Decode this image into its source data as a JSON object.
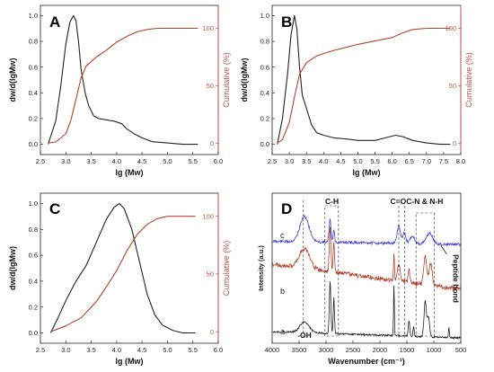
{
  "figure": {
    "colors": {
      "black": "#222222",
      "red": "#b5432b",
      "blue": "#4343d6",
      "axis_red": "#c0504d"
    }
  },
  "chart_data": [
    {
      "type": "line",
      "panel_label": "A",
      "xlabel": "lg (Mw)",
      "ylabel": "dw/d(lgMw)",
      "y2label": "Cumulative (%)",
      "xlim": [
        2.5,
        6.0
      ],
      "ylim": [
        -0.08,
        1.08
      ],
      "y2lim": [
        -10,
        120
      ],
      "xticks": [
        "2.5",
        "3.0",
        "3.5",
        "4.0",
        "4.5",
        "5.0",
        "5.5",
        "6.0"
      ],
      "yticks": [
        "0.0",
        "0.2",
        "0.4",
        "0.6",
        "0.8",
        "1.0"
      ],
      "y2ticks": [
        "0",
        "50",
        "100"
      ],
      "series": [
        {
          "axis": "left",
          "color": "#222222",
          "x": [
            2.65,
            2.8,
            2.9,
            3.0,
            3.08,
            3.15,
            3.2,
            3.25,
            3.3,
            3.38,
            3.45,
            3.55,
            3.65,
            3.8,
            3.95,
            4.1,
            4.2,
            4.35,
            4.5,
            4.7,
            5.0,
            5.3,
            5.6
          ],
          "y": [
            0.0,
            0.18,
            0.45,
            0.78,
            0.95,
            1.0,
            0.96,
            0.8,
            0.58,
            0.4,
            0.3,
            0.22,
            0.2,
            0.19,
            0.18,
            0.16,
            0.12,
            0.08,
            0.05,
            0.02,
            0.01,
            0.0,
            0.0
          ]
        },
        {
          "axis": "right",
          "color": "#b5432b",
          "x": [
            2.65,
            2.8,
            3.0,
            3.1,
            3.2,
            3.3,
            3.4,
            3.6,
            3.8,
            4.0,
            4.2,
            4.4,
            4.6,
            4.8,
            5.0,
            5.3,
            5.6
          ],
          "y": [
            0,
            1,
            8,
            20,
            38,
            57,
            67,
            75,
            81,
            88,
            93,
            97,
            99,
            100,
            100,
            100,
            100
          ]
        }
      ]
    },
    {
      "type": "line",
      "panel_label": "B",
      "xlabel": "lg (Mw)",
      "ylabel": "dw/d(lgMw)",
      "y2label": "Cumulative (%)",
      "xlim": [
        2.5,
        8.0
      ],
      "ylim": [
        -0.08,
        1.08
      ],
      "y2lim": [
        -10,
        120
      ],
      "xticks": [
        "2.5",
        "3.0",
        "3.5",
        "4.0",
        "4.5",
        "5.0",
        "5.5",
        "6.0",
        "6.5",
        "7.0",
        "7.5",
        "8.0"
      ],
      "yticks": [
        "0.0",
        "0.2",
        "0.4",
        "0.6",
        "0.8",
        "1.0"
      ],
      "y2ticks": [
        "0",
        "50",
        "100"
      ],
      "series": [
        {
          "axis": "left",
          "color": "#222222",
          "x": [
            2.65,
            2.8,
            2.95,
            3.05,
            3.15,
            3.22,
            3.3,
            3.38,
            3.5,
            3.65,
            3.8,
            4.0,
            4.3,
            4.7,
            5.0,
            5.5,
            5.8,
            6.1,
            6.3,
            6.6,
            7.0,
            7.4,
            7.7
          ],
          "y": [
            0.0,
            0.2,
            0.55,
            0.85,
            1.0,
            0.9,
            0.6,
            0.38,
            0.28,
            0.15,
            0.09,
            0.07,
            0.05,
            0.04,
            0.03,
            0.03,
            0.05,
            0.07,
            0.06,
            0.03,
            0.01,
            0.0,
            0.0
          ]
        },
        {
          "axis": "right",
          "color": "#b5432b",
          "x": [
            2.65,
            2.8,
            3.0,
            3.15,
            3.3,
            3.5,
            3.8,
            4.2,
            4.6,
            5.0,
            5.5,
            6.0,
            6.3,
            6.6,
            7.0,
            7.4,
            7.7
          ],
          "y": [
            0,
            3,
            18,
            40,
            60,
            70,
            76,
            80,
            83,
            86,
            89,
            92,
            96,
            99,
            100,
            100,
            100
          ]
        }
      ]
    },
    {
      "type": "line",
      "panel_label": "C",
      "xlabel": "lg (Mw)",
      "ylabel": "dw/d(lgMw)",
      "y2label": "Cumulative (%)",
      "xlim": [
        2.5,
        6.0
      ],
      "ylim": [
        -0.08,
        1.08
      ],
      "y2lim": [
        -10,
        120
      ],
      "xticks": [
        "2.5",
        "3.0",
        "3.5",
        "4.0",
        "4.5",
        "5.0",
        "5.5",
        "6.0"
      ],
      "yticks": [
        "0.0",
        "0.2",
        "0.4",
        "0.6",
        "0.8",
        "1.0"
      ],
      "y2ticks": [
        "0",
        "50",
        "100"
      ],
      "series": [
        {
          "axis": "left",
          "color": "#222222",
          "x": [
            2.7,
            2.85,
            3.0,
            3.2,
            3.4,
            3.6,
            3.8,
            3.95,
            4.05,
            4.15,
            4.3,
            4.45,
            4.6,
            4.75,
            4.9,
            5.1,
            5.3,
            5.55
          ],
          "y": [
            0.0,
            0.12,
            0.25,
            0.4,
            0.52,
            0.7,
            0.88,
            0.97,
            1.0,
            0.96,
            0.8,
            0.55,
            0.3,
            0.14,
            0.06,
            0.02,
            0.0,
            0.0
          ]
        },
        {
          "axis": "right",
          "color": "#b5432b",
          "x": [
            2.7,
            3.0,
            3.3,
            3.6,
            3.8,
            4.0,
            4.2,
            4.4,
            4.6,
            4.8,
            5.0,
            5.3,
            5.55
          ],
          "y": [
            0,
            5,
            12,
            26,
            39,
            53,
            70,
            84,
            93,
            98,
            100,
            100,
            100
          ]
        }
      ]
    },
    {
      "type": "line",
      "panel_label": "D",
      "xlabel": "Wavenumber (cm⁻¹)",
      "ylabel": "Intensity (a.u.)",
      "xlim": [
        4000,
        500
      ],
      "xticks": [
        "4000",
        "3500",
        "3000",
        "2500",
        "2000",
        "1500",
        "1000",
        "500"
      ],
      "trace_labels": [
        "c",
        "b",
        "a"
      ],
      "annotations": [
        "C-H",
        "C=O",
        "C-N & N-H",
        "Peptide bond",
        "-OH"
      ],
      "series": [
        {
          "name": "c",
          "color": "#4343d6"
        },
        {
          "name": "b",
          "color": "#b5432b"
        },
        {
          "name": "a",
          "color": "#222222"
        }
      ]
    }
  ]
}
